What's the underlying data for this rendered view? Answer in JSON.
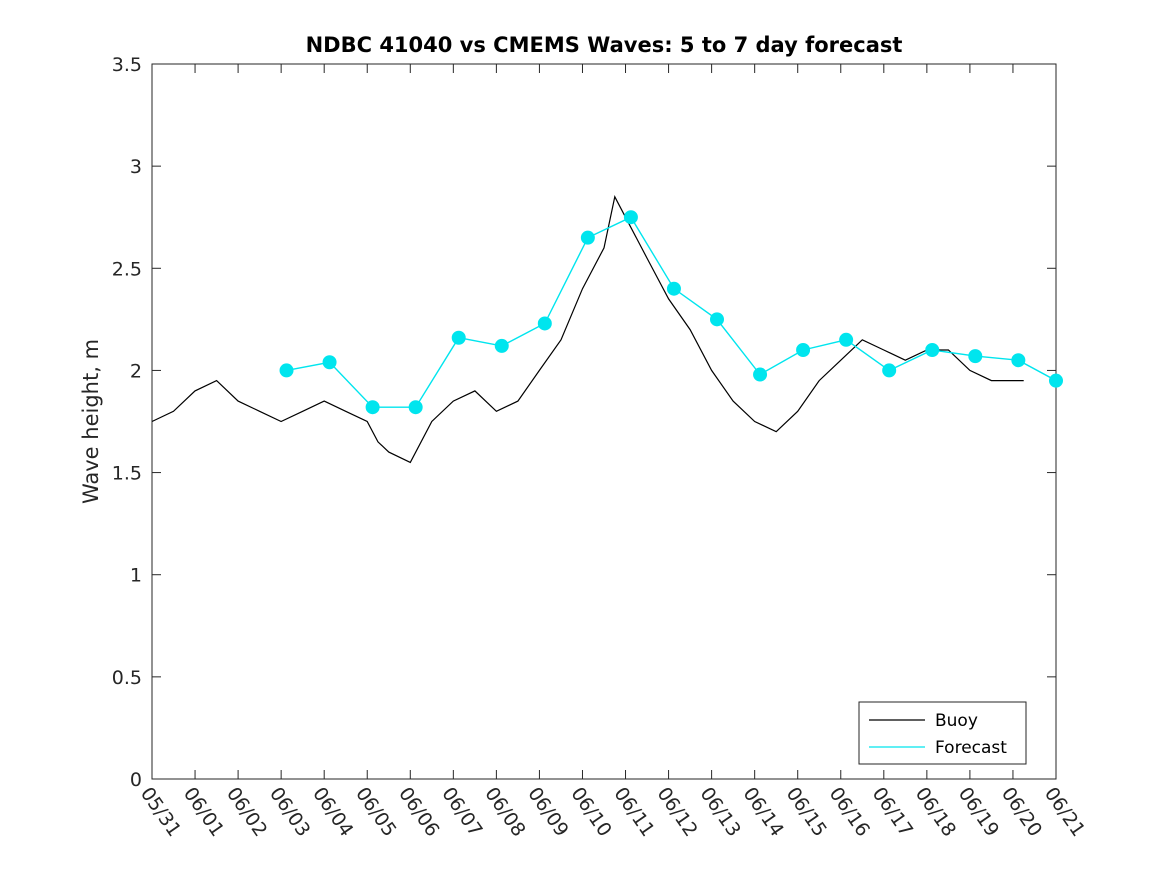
{
  "chart_data": {
    "type": "line",
    "title": "NDBC 41040 vs CMEMS Waves: 5 to 7 day forecast",
    "xlabel": "",
    "ylabel": "Wave height, m",
    "xlim": [
      "05/31",
      "06/21"
    ],
    "ylim": [
      0,
      3.5
    ],
    "grid": false,
    "legend_position": "bottom-right",
    "x_tick_labels": [
      "05/31",
      "06/01",
      "06/02",
      "06/03",
      "06/04",
      "06/05",
      "06/06",
      "06/07",
      "06/08",
      "06/09",
      "06/10",
      "06/11",
      "06/12",
      "06/13",
      "06/14",
      "06/15",
      "06/16",
      "06/17",
      "06/18",
      "06/19",
      "06/20",
      "06/21"
    ],
    "y_tick_labels": [
      "0",
      "0.5",
      "1",
      "1.5",
      "2",
      "2.5",
      "3",
      "3.5"
    ],
    "y_ticks": [
      0,
      0.5,
      1,
      1.5,
      2,
      2.5,
      3,
      3.5
    ],
    "series": [
      {
        "name": "Buoy",
        "color": "#000000",
        "x": [
          "05/31 00:00",
          "05/31 12:00",
          "06/01 00:00",
          "06/01 12:00",
          "06/02 00:00",
          "06/02 12:00",
          "06/03 00:00",
          "06/03 12:00",
          "06/04 00:00",
          "06/04 12:00",
          "06/05 00:00",
          "06/05 06:00",
          "06/05 12:00",
          "06/06 00:00",
          "06/06 12:00",
          "06/07 00:00",
          "06/07 12:00",
          "06/08 00:00",
          "06/08 12:00",
          "06/09 00:00",
          "06/09 12:00",
          "06/10 00:00",
          "06/10 12:00",
          "06/10 18:00",
          "06/11 00:00",
          "06/11 12:00",
          "06/12 00:00",
          "06/12 12:00",
          "06/13 00:00",
          "06/13 12:00",
          "06/14 00:00",
          "06/14 12:00",
          "06/15 00:00",
          "06/15 12:00",
          "06/16 00:00",
          "06/16 12:00",
          "06/17 00:00",
          "06/17 12:00",
          "06/18 00:00",
          "06/18 12:00",
          "06/19 00:00",
          "06/19 12:00",
          "06/20 00:00",
          "06/20 06:00"
        ],
        "values": [
          1.75,
          1.8,
          1.9,
          1.95,
          1.85,
          1.8,
          1.75,
          1.8,
          1.85,
          1.8,
          1.75,
          1.65,
          1.6,
          1.55,
          1.75,
          1.85,
          1.9,
          1.8,
          1.85,
          2.0,
          2.15,
          2.4,
          2.6,
          2.85,
          2.75,
          2.55,
          2.35,
          2.2,
          2.0,
          1.85,
          1.75,
          1.7,
          1.8,
          1.95,
          2.05,
          2.15,
          2.1,
          2.05,
          2.1,
          2.1,
          2.0,
          1.95,
          1.95,
          1.95
        ]
      },
      {
        "name": "Forecast",
        "color": "#00e5ee",
        "x": [
          "06/03 03:00",
          "06/04 03:00",
          "06/05 03:00",
          "06/06 03:00",
          "06/07 03:00",
          "06/08 03:00",
          "06/09 03:00",
          "06/10 03:00",
          "06/11 03:00",
          "06/12 03:00",
          "06/13 03:00",
          "06/14 03:00",
          "06/15 03:00",
          "06/16 03:00",
          "06/17 03:00",
          "06/18 03:00",
          "06/19 03:00",
          "06/20 03:00",
          "06/21 00:00"
        ],
        "values": [
          2.0,
          2.04,
          1.82,
          1.82,
          2.16,
          2.12,
          2.23,
          2.65,
          2.75,
          2.4,
          2.25,
          1.98,
          2.1,
          2.15,
          2.0,
          2.1,
          2.07,
          2.05,
          1.95
        ]
      }
    ]
  }
}
